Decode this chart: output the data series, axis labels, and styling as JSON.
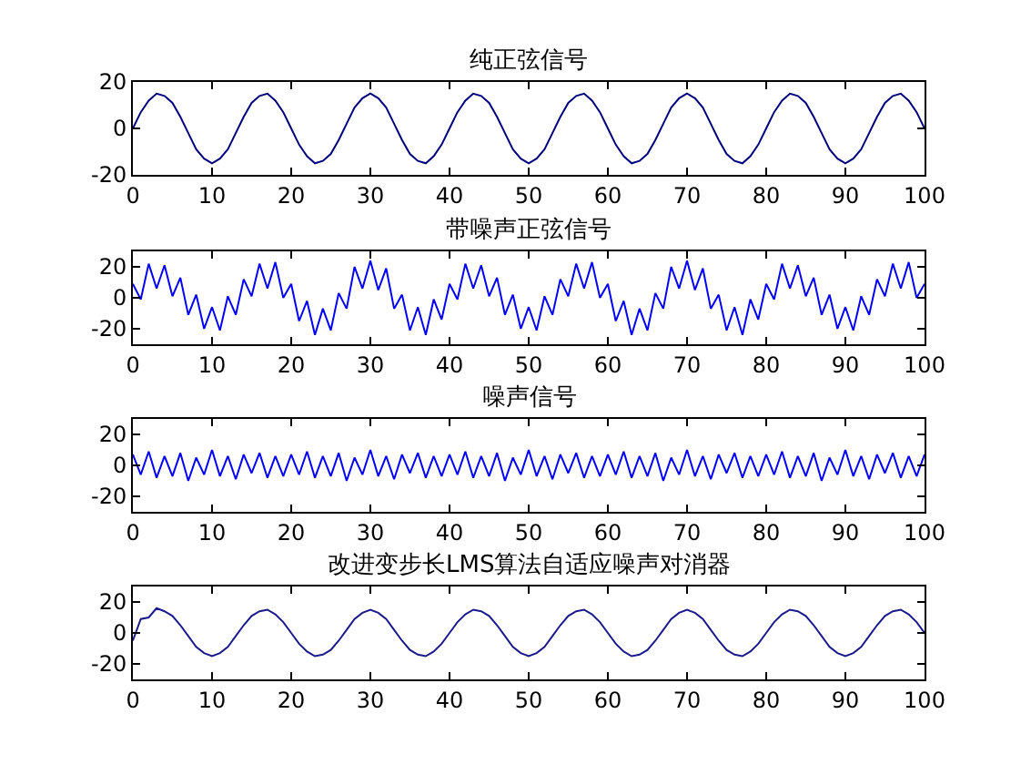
{
  "chart_data": [
    {
      "type": "line",
      "title": "纯正弦信号",
      "color": "#00007f",
      "xlim": [
        0,
        100
      ],
      "xticks": [
        0,
        10,
        20,
        30,
        40,
        50,
        60,
        70,
        80,
        90,
        100
      ],
      "ylim": [
        -20,
        20
      ],
      "yticks": [
        -20,
        0,
        20
      ],
      "x": [
        0,
        1,
        2,
        3,
        4,
        5,
        6,
        7,
        8,
        9,
        10,
        11,
        12,
        13,
        14,
        15,
        16,
        17,
        18,
        19,
        20,
        21,
        22,
        23,
        24,
        25,
        26,
        27,
        28,
        29,
        30,
        31,
        32,
        33,
        34,
        35,
        36,
        37,
        38,
        39,
        40,
        41,
        42,
        43,
        44,
        45,
        46,
        47,
        48,
        49,
        50,
        51,
        52,
        53,
        54,
        55,
        56,
        57,
        58,
        59,
        60,
        61,
        62,
        63,
        64,
        65,
        66,
        67,
        68,
        69,
        70,
        71,
        72,
        73,
        74,
        75,
        76,
        77,
        78,
        79,
        80,
        81,
        82,
        83,
        84,
        85,
        86,
        87,
        88,
        89,
        90,
        91,
        92,
        93,
        94,
        95,
        96,
        97,
        98,
        99,
        100
      ],
      "values": [
        0,
        7,
        12,
        15,
        14,
        11,
        5,
        -2,
        -9,
        -13,
        -15,
        -13,
        -9,
        -2,
        5,
        11,
        14,
        15,
        12,
        7,
        0,
        -7,
        -12,
        -15,
        -14,
        -11,
        -5,
        2,
        9,
        13,
        15,
        13,
        9,
        2,
        -5,
        -11,
        -14,
        -15,
        -12,
        -7,
        0,
        7,
        12,
        15,
        14,
        11,
        5,
        -2,
        -9,
        -13,
        -15,
        -13,
        -9,
        -2,
        5,
        11,
        14,
        15,
        12,
        7,
        0,
        -7,
        -12,
        -15,
        -14,
        -11,
        -5,
        2,
        9,
        13,
        15,
        13,
        9,
        2,
        -5,
        -11,
        -14,
        -15,
        -12,
        -7,
        0,
        7,
        12,
        15,
        14,
        11,
        5,
        -2,
        -9,
        -13,
        -15,
        -13,
        -9,
        -2,
        5,
        11,
        14,
        15,
        12,
        7,
        0
      ]
    },
    {
      "type": "line",
      "title": "带噪声正弦信号",
      "color": "#0000ff",
      "xlim": [
        0,
        100
      ],
      "xticks": [
        0,
        10,
        20,
        30,
        40,
        50,
        60,
        70,
        80,
        90,
        100
      ],
      "ylim": [
        -30,
        30
      ],
      "yticks": [
        -20,
        0,
        20
      ],
      "x": [
        0,
        1,
        2,
        3,
        4,
        5,
        6,
        7,
        8,
        9,
        10,
        11,
        12,
        13,
        14,
        15,
        16,
        17,
        18,
        19,
        20,
        21,
        22,
        23,
        24,
        25,
        26,
        27,
        28,
        29,
        30,
        31,
        32,
        33,
        34,
        35,
        36,
        37,
        38,
        39,
        40,
        41,
        42,
        43,
        44,
        45,
        46,
        47,
        48,
        49,
        50,
        51,
        52,
        53,
        54,
        55,
        56,
        57,
        58,
        59,
        60,
        61,
        62,
        63,
        64,
        65,
        66,
        67,
        68,
        69,
        70,
        71,
        72,
        73,
        74,
        75,
        76,
        77,
        78,
        79,
        80,
        81,
        82,
        83,
        84,
        85,
        86,
        87,
        88,
        89,
        90,
        91,
        92,
        93,
        94,
        95,
        96,
        97,
        98,
        99,
        100
      ],
      "values": [
        9,
        -1,
        22,
        6,
        21,
        1,
        13,
        -11,
        2,
        -20,
        -6,
        -21,
        1,
        -11,
        12,
        1,
        22,
        6,
        23,
        0,
        9,
        -15,
        -2,
        -24,
        -7,
        -21,
        3,
        -7,
        20,
        6,
        24,
        5,
        19,
        -7,
        2,
        -21,
        -6,
        -24,
        -1,
        -14,
        9,
        -1,
        22,
        6,
        21,
        1,
        13,
        -11,
        2,
        -20,
        -6,
        -21,
        1,
        -11,
        12,
        1,
        22,
        6,
        23,
        0,
        9,
        -15,
        -2,
        -24,
        -7,
        -21,
        3,
        -7,
        20,
        6,
        24,
        5,
        19,
        -7,
        2,
        -21,
        -6,
        -24,
        -1,
        -14,
        9,
        -1,
        22,
        6,
        21,
        1,
        13,
        -11,
        2,
        -20,
        -6,
        -21,
        1,
        -11,
        12,
        1,
        22,
        6,
        23,
        0,
        9
      ]
    },
    {
      "type": "line",
      "title": "噪声信号",
      "color": "#0000ff",
      "xlim": [
        0,
        100
      ],
      "xticks": [
        0,
        10,
        20,
        30,
        40,
        50,
        60,
        70,
        80,
        90,
        100
      ],
      "ylim": [
        -30,
        30
      ],
      "yticks": [
        -20,
        0,
        20
      ],
      "x": [
        0,
        1,
        2,
        3,
        4,
        5,
        6,
        7,
        8,
        9,
        10,
        11,
        12,
        13,
        14,
        15,
        16,
        17,
        18,
        19,
        20,
        21,
        22,
        23,
        24,
        25,
        26,
        27,
        28,
        29,
        30,
        31,
        32,
        33,
        34,
        35,
        36,
        37,
        38,
        39,
        40,
        41,
        42,
        43,
        44,
        45,
        46,
        47,
        48,
        49,
        50,
        51,
        52,
        53,
        54,
        55,
        56,
        57,
        58,
        59,
        60,
        61,
        62,
        63,
        64,
        65,
        66,
        67,
        68,
        69,
        70,
        71,
        72,
        73,
        74,
        75,
        76,
        77,
        78,
        79,
        80,
        81,
        82,
        83,
        84,
        85,
        86,
        87,
        88,
        89,
        90,
        91,
        92,
        93,
        94,
        95,
        96,
        97,
        98,
        99,
        100
      ],
      "values": [
        7,
        -6,
        9,
        -8,
        6,
        -7,
        8,
        -10,
        5,
        -6,
        10,
        -7,
        6,
        -9,
        7,
        -5,
        8,
        -8,
        6,
        -7,
        7,
        -6,
        9,
        -8,
        6,
        -7,
        8,
        -10,
        5,
        -6,
        10,
        -7,
        6,
        -9,
        7,
        -5,
        8,
        -8,
        6,
        -7,
        7,
        -6,
        9,
        -8,
        6,
        -7,
        8,
        -10,
        5,
        -6,
        10,
        -7,
        6,
        -9,
        7,
        -5,
        8,
        -8,
        6,
        -7,
        7,
        -6,
        9,
        -8,
        6,
        -7,
        8,
        -10,
        5,
        -6,
        10,
        -7,
        6,
        -9,
        7,
        -5,
        8,
        -8,
        6,
        -7,
        7,
        -6,
        9,
        -8,
        6,
        -7,
        8,
        -10,
        5,
        -6,
        10,
        -7,
        6,
        -9,
        7,
        -5,
        8,
        -8,
        6,
        -7,
        7
      ]
    },
    {
      "type": "line",
      "title": "改进变步长LMS算法自适应噪声对消器",
      "color": "#1a1a8c",
      "xlim": [
        0,
        100
      ],
      "xticks": [
        0,
        10,
        20,
        30,
        40,
        50,
        60,
        70,
        80,
        90,
        100
      ],
      "ylim": [
        -30,
        30
      ],
      "yticks": [
        -20,
        0,
        20
      ],
      "x": [
        0,
        1,
        2,
        3,
        4,
        5,
        6,
        7,
        8,
        9,
        10,
        11,
        12,
        13,
        14,
        15,
        16,
        17,
        18,
        19,
        20,
        21,
        22,
        23,
        24,
        25,
        26,
        27,
        28,
        29,
        30,
        31,
        32,
        33,
        34,
        35,
        36,
        37,
        38,
        39,
        40,
        41,
        42,
        43,
        44,
        45,
        46,
        47,
        48,
        49,
        50,
        51,
        52,
        53,
        54,
        55,
        56,
        57,
        58,
        59,
        60,
        61,
        62,
        63,
        64,
        65,
        66,
        67,
        68,
        69,
        70,
        71,
        72,
        73,
        74,
        75,
        76,
        77,
        78,
        79,
        80,
        81,
        82,
        83,
        84,
        85,
        86,
        87,
        88,
        89,
        90,
        91,
        92,
        93,
        94,
        95,
        96,
        97,
        98,
        99,
        100
      ],
      "values": [
        -5,
        9,
        10,
        16,
        14,
        11,
        5,
        -2,
        -9,
        -13,
        -15,
        -13,
        -9,
        -2,
        5,
        11,
        14,
        15,
        12,
        7,
        0,
        -7,
        -12,
        -15,
        -14,
        -11,
        -5,
        2,
        9,
        13,
        15,
        13,
        9,
        2,
        -5,
        -11,
        -14,
        -15,
        -12,
        -7,
        0,
        7,
        12,
        15,
        14,
        11,
        5,
        -2,
        -9,
        -13,
        -15,
        -13,
        -9,
        -2,
        5,
        11,
        14,
        15,
        12,
        7,
        0,
        -7,
        -12,
        -15,
        -14,
        -11,
        -5,
        2,
        9,
        13,
        15,
        13,
        9,
        2,
        -5,
        -11,
        -14,
        -15,
        -12,
        -7,
        0,
        7,
        12,
        15,
        14,
        11,
        5,
        -2,
        -9,
        -13,
        -15,
        -13,
        -9,
        -2,
        5,
        11,
        14,
        15,
        12,
        7,
        0
      ]
    }
  ]
}
